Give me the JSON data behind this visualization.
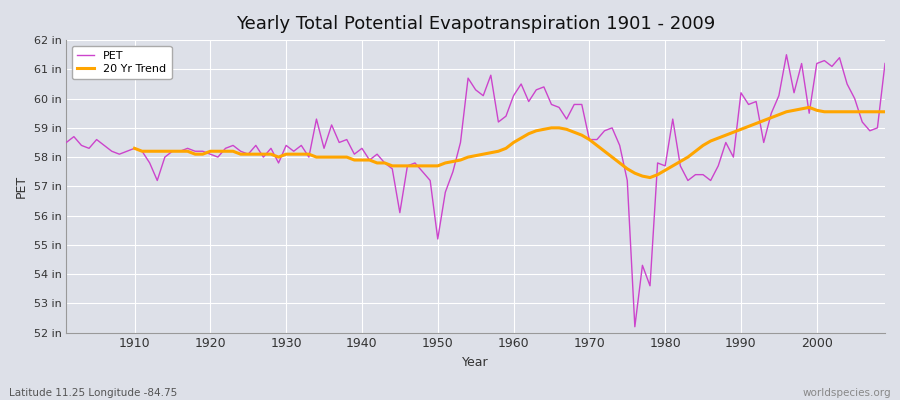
{
  "title": "Yearly Total Potential Evapotranspiration 1901 - 2009",
  "xlabel": "Year",
  "ylabel": "PET",
  "bg_color": "#dde0e8",
  "plot_bg_color": "#dde0e8",
  "pet_color": "#cc44cc",
  "trend_color": "#ffa500",
  "legend_pet": "PET",
  "legend_trend": "20 Yr Trend",
  "ylim": [
    52,
    62
  ],
  "yticks": [
    52,
    53,
    54,
    55,
    56,
    57,
    58,
    59,
    60,
    61,
    62
  ],
  "ytick_labels": [
    "52 in",
    "53 in",
    "54 in",
    "55 in",
    "56 in",
    "57 in",
    "58 in",
    "59 in",
    "60 in",
    "61 in",
    "62 in"
  ],
  "xticks": [
    1910,
    1920,
    1930,
    1940,
    1950,
    1960,
    1970,
    1980,
    1990,
    2000
  ],
  "footer_left": "Latitude 11.25 Longitude -84.75",
  "footer_right": "worldspecies.org",
  "years": [
    1901,
    1902,
    1903,
    1904,
    1905,
    1906,
    1907,
    1908,
    1909,
    1910,
    1911,
    1912,
    1913,
    1914,
    1915,
    1916,
    1917,
    1918,
    1919,
    1920,
    1921,
    1922,
    1923,
    1924,
    1925,
    1926,
    1927,
    1928,
    1929,
    1930,
    1931,
    1932,
    1933,
    1934,
    1935,
    1936,
    1937,
    1938,
    1939,
    1940,
    1941,
    1942,
    1943,
    1944,
    1945,
    1946,
    1947,
    1948,
    1949,
    1950,
    1951,
    1952,
    1953,
    1954,
    1955,
    1956,
    1957,
    1958,
    1959,
    1960,
    1961,
    1962,
    1963,
    1964,
    1965,
    1966,
    1967,
    1968,
    1969,
    1970,
    1971,
    1972,
    1973,
    1974,
    1975,
    1976,
    1977,
    1978,
    1979,
    1980,
    1981,
    1982,
    1983,
    1984,
    1985,
    1986,
    1987,
    1988,
    1989,
    1990,
    1991,
    1992,
    1993,
    1994,
    1995,
    1996,
    1997,
    1998,
    1999,
    2000,
    2001,
    2002,
    2003,
    2004,
    2005,
    2006,
    2007,
    2008,
    2009
  ],
  "pet_values": [
    58.5,
    58.7,
    58.4,
    58.3,
    58.6,
    58.4,
    58.2,
    58.1,
    58.2,
    58.3,
    58.2,
    57.8,
    57.2,
    58.0,
    58.2,
    58.2,
    58.3,
    58.2,
    58.2,
    58.1,
    58.0,
    58.3,
    58.4,
    58.2,
    58.1,
    58.4,
    58.0,
    58.3,
    57.8,
    58.4,
    58.2,
    58.4,
    58.0,
    59.3,
    58.3,
    59.1,
    58.5,
    58.6,
    58.1,
    58.3,
    57.9,
    58.1,
    57.8,
    57.6,
    56.1,
    57.7,
    57.8,
    57.5,
    57.2,
    55.2,
    56.8,
    57.5,
    58.5,
    60.7,
    60.3,
    60.1,
    60.8,
    59.2,
    59.4,
    60.1,
    60.5,
    59.9,
    60.3,
    60.4,
    59.8,
    59.7,
    59.3,
    59.8,
    59.8,
    58.6,
    58.6,
    58.9,
    59.0,
    58.4,
    57.2,
    52.2,
    54.3,
    53.6,
    57.8,
    57.7,
    59.3,
    57.7,
    57.2,
    57.4,
    57.4,
    57.2,
    57.7,
    58.5,
    58.0,
    60.2,
    59.8,
    59.9,
    58.5,
    59.5,
    60.1,
    61.5,
    60.2,
    61.2,
    59.5,
    61.2,
    61.3,
    61.1,
    61.4,
    60.5,
    60.0,
    59.2,
    58.9,
    59.0,
    61.2
  ],
  "trend_years": [
    1910,
    1911,
    1912,
    1913,
    1914,
    1915,
    1916,
    1917,
    1918,
    1919,
    1920,
    1921,
    1922,
    1923,
    1924,
    1925,
    1926,
    1927,
    1928,
    1929,
    1930,
    1931,
    1932,
    1933,
    1934,
    1935,
    1936,
    1937,
    1938,
    1939,
    1940,
    1941,
    1942,
    1943,
    1944,
    1945,
    1946,
    1947,
    1948,
    1949,
    1950,
    1951,
    1952,
    1953,
    1954,
    1955,
    1956,
    1957,
    1958,
    1959,
    1960,
    1961,
    1962,
    1963,
    1964,
    1965,
    1966,
    1967,
    1968,
    1969,
    1970,
    1971,
    1972,
    1973,
    1974,
    1975,
    1976,
    1977,
    1978,
    1979,
    1980,
    1981,
    1982,
    1983,
    1984,
    1985,
    1986,
    1987,
    1988,
    1989,
    1990,
    1991,
    1992,
    1993,
    1994,
    1995,
    1996,
    1997,
    1998,
    1999,
    2000,
    2001,
    2002,
    2003,
    2004,
    2005,
    2006,
    2007,
    2008,
    2009
  ],
  "trend_values": [
    58.3,
    58.2,
    58.2,
    58.2,
    58.2,
    58.2,
    58.2,
    58.2,
    58.1,
    58.1,
    58.2,
    58.2,
    58.2,
    58.2,
    58.1,
    58.1,
    58.1,
    58.1,
    58.1,
    58.0,
    58.1,
    58.1,
    58.1,
    58.1,
    58.0,
    58.0,
    58.0,
    58.0,
    58.0,
    57.9,
    57.9,
    57.9,
    57.8,
    57.8,
    57.7,
    57.7,
    57.7,
    57.7,
    57.7,
    57.7,
    57.7,
    57.8,
    57.85,
    57.9,
    58.0,
    58.05,
    58.1,
    58.15,
    58.2,
    58.3,
    58.5,
    58.65,
    58.8,
    58.9,
    58.95,
    59.0,
    59.0,
    58.95,
    58.85,
    58.75,
    58.6,
    58.4,
    58.2,
    58.0,
    57.8,
    57.6,
    57.45,
    57.35,
    57.3,
    57.4,
    57.55,
    57.7,
    57.85,
    58.0,
    58.2,
    58.4,
    58.55,
    58.65,
    58.75,
    58.85,
    58.95,
    59.05,
    59.15,
    59.25,
    59.35,
    59.45,
    59.55,
    59.6,
    59.65,
    59.7,
    59.6,
    59.55,
    59.55,
    59.55,
    59.55,
    59.55,
    59.55,
    59.55,
    59.55,
    59.55
  ]
}
